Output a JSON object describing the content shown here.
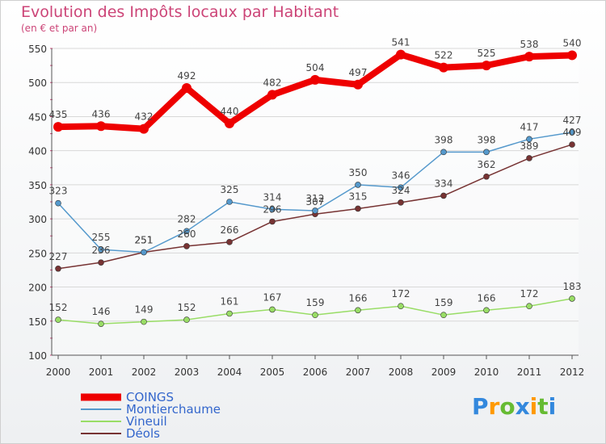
{
  "title": "Evolution des Impôts locaux par Habitant",
  "subtitle": "(en € et par an)",
  "watermark": "Proxiti",
  "chart_data": {
    "type": "line",
    "title": "Evolution des Impôts locaux par Habitant",
    "subtitle": "(en € et par an)",
    "x": [
      2000,
      2001,
      2002,
      2003,
      2004,
      2005,
      2006,
      2007,
      2008,
      2009,
      2010,
      2011,
      2012
    ],
    "ylim": [
      100,
      550
    ],
    "yticks": [
      100,
      150,
      200,
      250,
      300,
      350,
      400,
      450,
      500,
      550
    ],
    "grid": true,
    "legend": "bottom-left",
    "series": [
      {
        "name": "COINGS",
        "color": "#ee0000",
        "values": [
          435,
          436,
          432,
          492,
          440,
          482,
          504,
          497,
          541,
          522,
          525,
          538,
          540
        ]
      },
      {
        "name": "Montierchaume",
        "color": "#5599cc",
        "values": [
          323,
          255,
          251,
          282,
          325,
          314,
          312,
          350,
          346,
          398,
          398,
          417,
          427
        ]
      },
      {
        "name": "Vineuil",
        "color": "#99dd66",
        "values": [
          152,
          146,
          149,
          152,
          161,
          167,
          159,
          166,
          172,
          159,
          166,
          172,
          183
        ]
      },
      {
        "name": "Déols",
        "color": "#773333",
        "values": [
          227,
          236,
          251,
          260,
          266,
          296,
          307,
          315,
          324,
          334,
          362,
          389,
          409
        ]
      }
    ]
  }
}
